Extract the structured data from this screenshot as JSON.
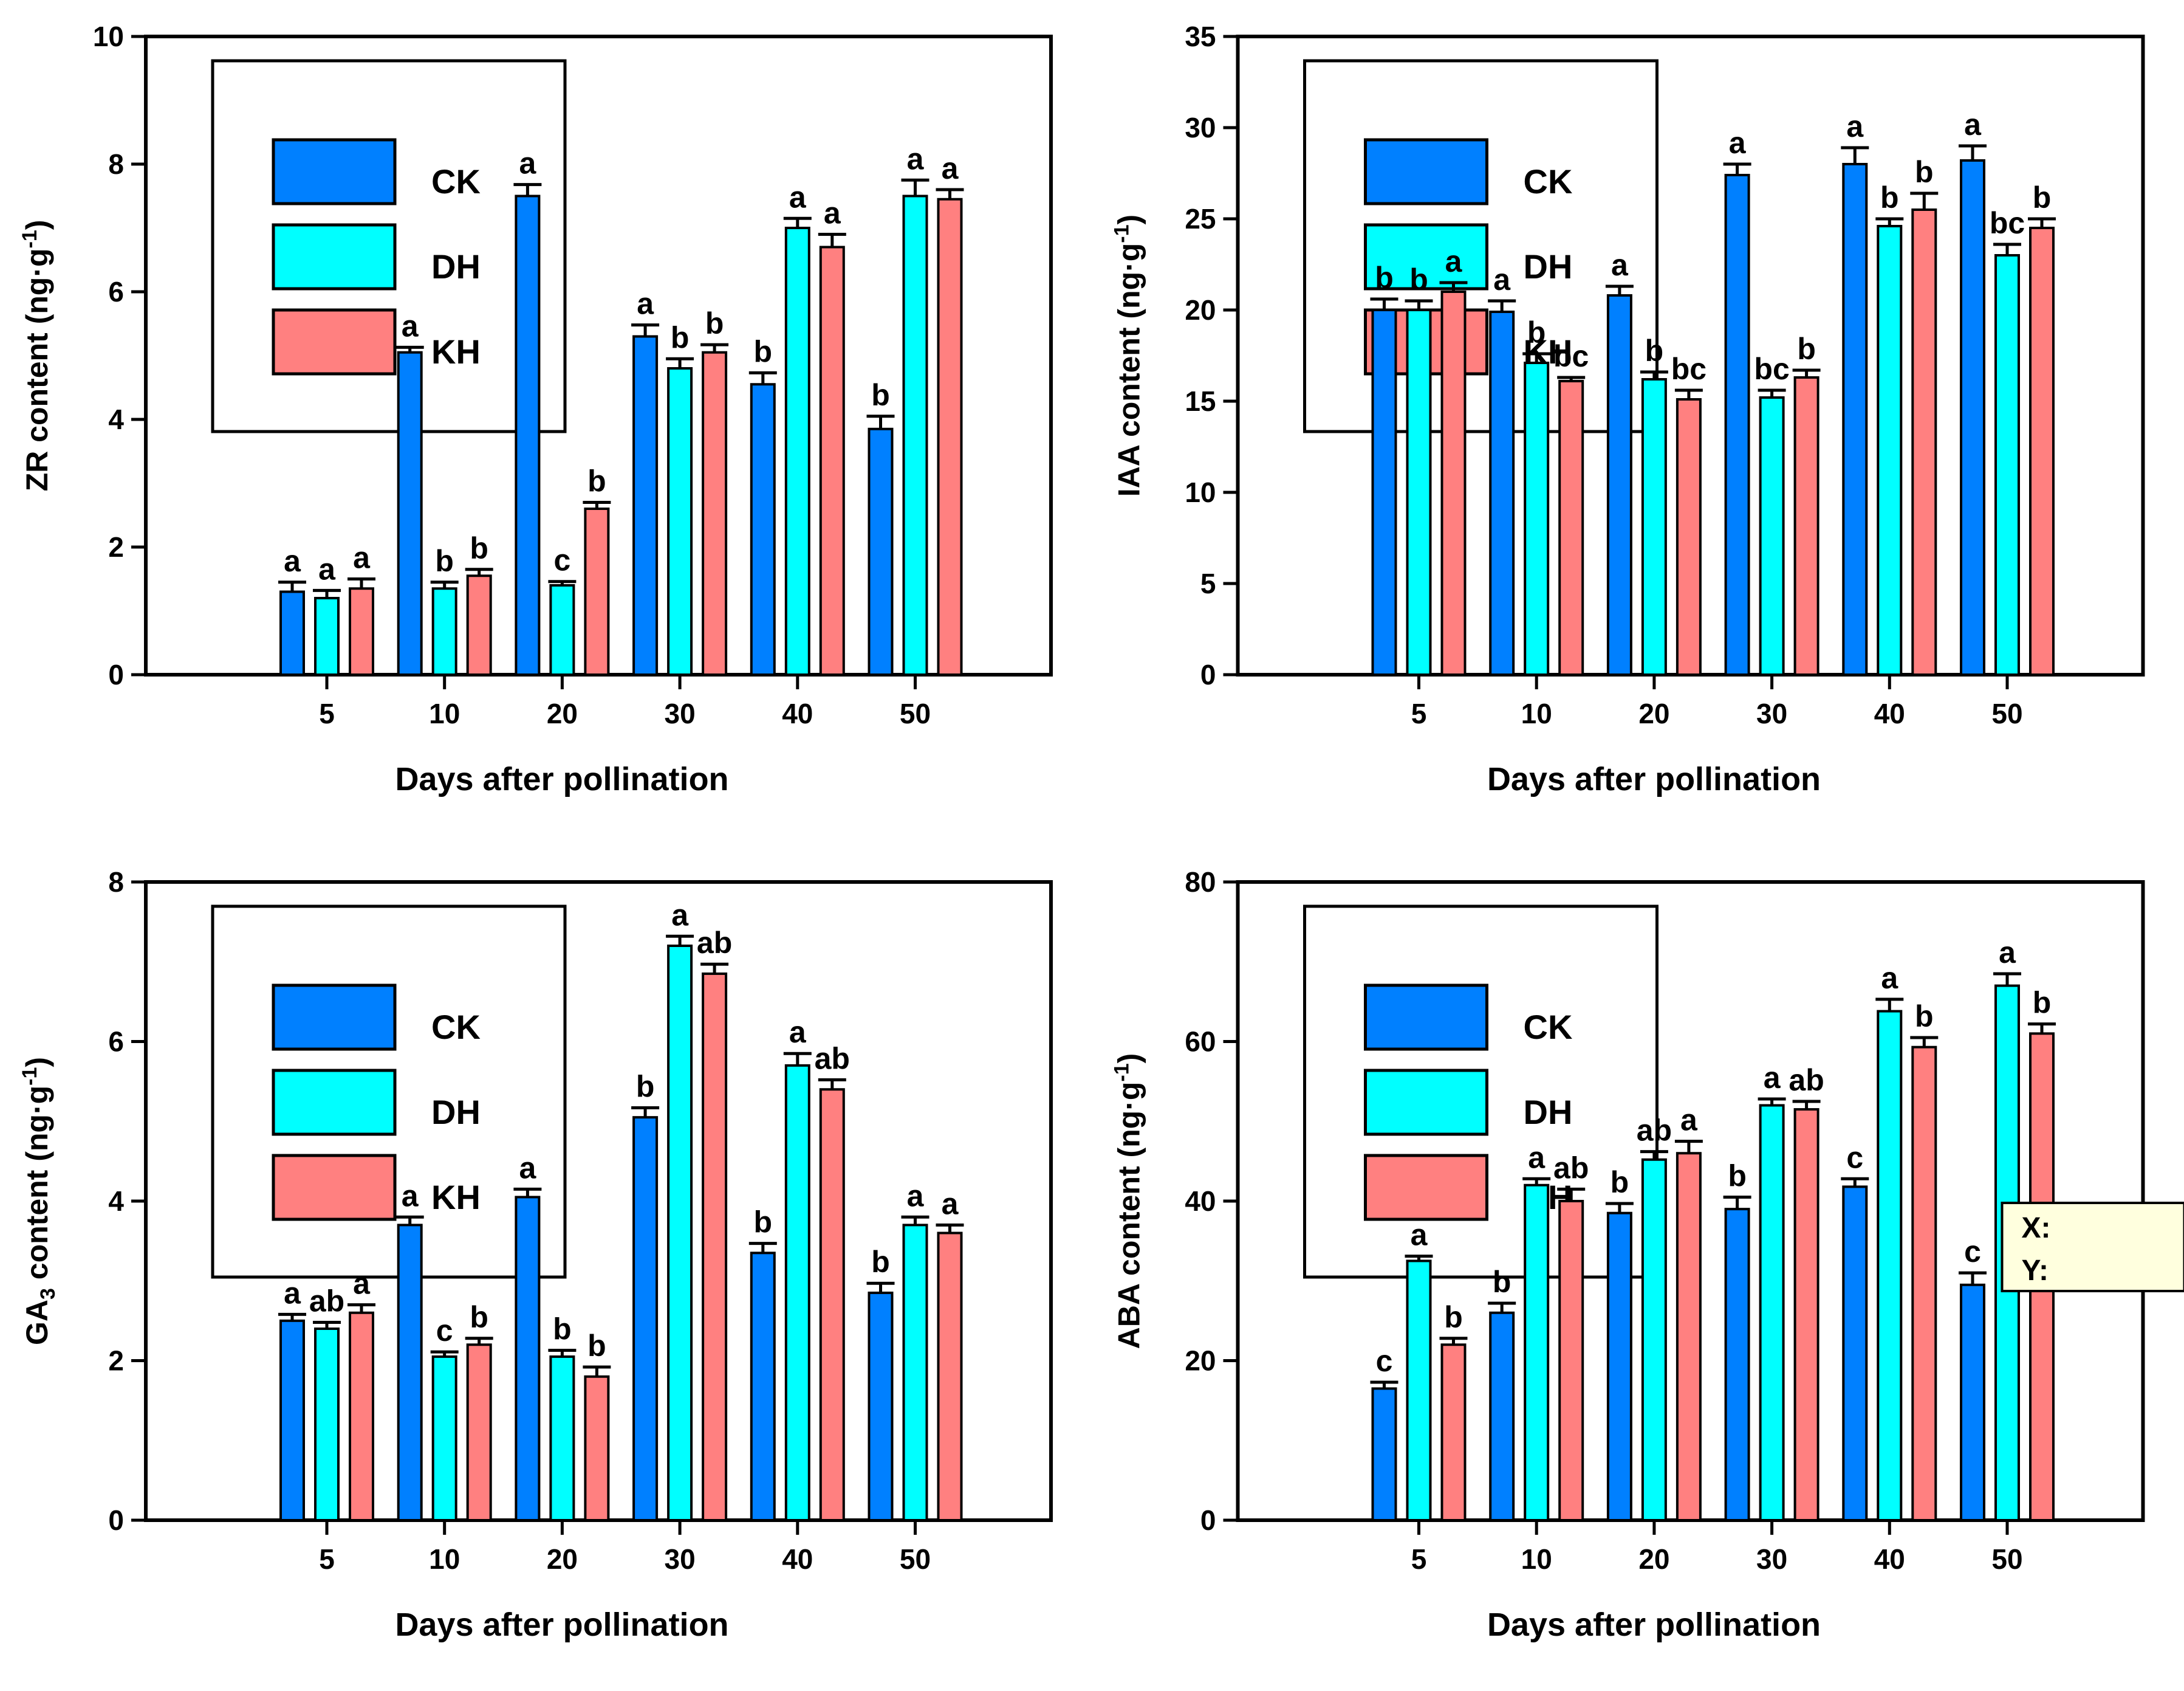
{
  "page": {
    "background": "#ffffff"
  },
  "colors": {
    "CK": "#0080FF",
    "DH": "#00FFFF",
    "KH": "#FF8080",
    "bar_stroke": "#000000",
    "axis": "#000000",
    "text": "#000000",
    "tooltip_bg": "#FFFFDE",
    "tooltip_border": "#000000",
    "tooltip_text": "#191970"
  },
  "legend": {
    "labels": [
      "CK",
      "DH",
      "KH"
    ],
    "position": "top-left"
  },
  "xlabel": "Days after pollination",
  "categories": [
    "5",
    "10",
    "20",
    "30",
    "40",
    "50"
  ],
  "tooltip": {
    "x_label": "X:",
    "y_label": "Y:"
  },
  "chart_data": [
    {
      "type": "bar",
      "id": "zr",
      "title": "",
      "ylabel_segments": [
        {
          "text": "ZR content (ng·g",
          "style": "normal"
        },
        {
          "text": "-1",
          "style": "sup"
        },
        {
          "text": ")",
          "style": "normal"
        }
      ],
      "xlabel": "Days after pollination",
      "categories": [
        "5",
        "10",
        "20",
        "30",
        "40",
        "50"
      ],
      "ylim": [
        0,
        10
      ],
      "ytick_step": 2,
      "grid": false,
      "legend_position": "top-left",
      "series": [
        {
          "name": "CK",
          "values": [
            1.3,
            5.05,
            7.5,
            5.3,
            4.55,
            3.85
          ],
          "errors": [
            0.15,
            0.08,
            0.18,
            0.18,
            0.18,
            0.2
          ],
          "letters": [
            "a",
            "a",
            "a",
            "a",
            "b",
            "b"
          ]
        },
        {
          "name": "DH",
          "values": [
            1.2,
            1.35,
            1.4,
            4.8,
            7.0,
            7.5
          ],
          "errors": [
            0.12,
            0.1,
            0.06,
            0.15,
            0.15,
            0.25
          ],
          "letters": [
            "a",
            "b",
            "c",
            "b",
            "a",
            "a"
          ]
        },
        {
          "name": "KH",
          "values": [
            1.35,
            1.55,
            2.6,
            5.05,
            6.7,
            7.45
          ],
          "errors": [
            0.15,
            0.1,
            0.1,
            0.12,
            0.2,
            0.15
          ],
          "letters": [
            "a",
            "b",
            "b",
            "b",
            "a",
            "a"
          ]
        }
      ],
      "has_tooltip": false
    },
    {
      "type": "bar",
      "id": "iaa",
      "title": "",
      "ylabel_segments": [
        {
          "text": "IAA content (ng·g",
          "style": "normal"
        },
        {
          "text": "-1",
          "style": "sup"
        },
        {
          "text": ")",
          "style": "normal"
        }
      ],
      "xlabel": "Days after pollination",
      "categories": [
        "5",
        "10",
        "20",
        "30",
        "40",
        "50"
      ],
      "ylim": [
        0,
        35
      ],
      "ytick_step": 5,
      "grid": false,
      "legend_position": "top-left",
      "series": [
        {
          "name": "CK",
          "values": [
            20.0,
            19.9,
            20.8,
            27.4,
            28.0,
            28.2
          ],
          "errors": [
            0.6,
            0.6,
            0.5,
            0.6,
            0.9,
            0.8
          ],
          "letters": [
            "b",
            "a",
            "a",
            "a",
            "a",
            "a"
          ]
        },
        {
          "name": "DH",
          "values": [
            20.0,
            17.1,
            16.2,
            15.2,
            24.6,
            23.0
          ],
          "errors": [
            0.5,
            0.5,
            0.4,
            0.4,
            0.4,
            0.6
          ],
          "letters": [
            "b",
            "b",
            "b",
            "bc",
            "b",
            "bc"
          ]
        },
        {
          "name": "KH",
          "values": [
            21.0,
            16.1,
            15.1,
            16.3,
            25.5,
            24.5
          ],
          "errors": [
            0.5,
            0.2,
            0.5,
            0.4,
            0.9,
            0.5
          ],
          "letters": [
            "a",
            "bc",
            "bc",
            "b",
            "b",
            "b"
          ]
        }
      ],
      "has_tooltip": false
    },
    {
      "type": "bar",
      "id": "ga3",
      "title": "",
      "ylabel_segments": [
        {
          "text": "GA",
          "style": "normal"
        },
        {
          "text": "3",
          "style": "sub"
        },
        {
          "text": " content (ng·g",
          "style": "normal"
        },
        {
          "text": "-1",
          "style": "sup"
        },
        {
          "text": ")",
          "style": "normal"
        }
      ],
      "xlabel": "Days after pollination",
      "categories": [
        "5",
        "10",
        "20",
        "30",
        "40",
        "50"
      ],
      "ylim": [
        0,
        8
      ],
      "ytick_step": 2,
      "grid": false,
      "legend_position": "top-left",
      "series": [
        {
          "name": "CK",
          "values": [
            2.5,
            3.7,
            4.05,
            5.05,
            3.35,
            2.85
          ],
          "errors": [
            0.08,
            0.1,
            0.1,
            0.12,
            0.12,
            0.12
          ],
          "letters": [
            "a",
            "a",
            "a",
            "b",
            "b",
            "b"
          ]
        },
        {
          "name": "DH",
          "values": [
            2.4,
            2.05,
            2.05,
            7.2,
            5.7,
            3.7
          ],
          "errors": [
            0.08,
            0.06,
            0.08,
            0.12,
            0.15,
            0.1
          ],
          "letters": [
            "ab",
            "c",
            "b",
            "a",
            "a",
            "a"
          ]
        },
        {
          "name": "KH",
          "values": [
            2.6,
            2.2,
            1.8,
            6.85,
            5.4,
            3.6
          ],
          "errors": [
            0.1,
            0.08,
            0.12,
            0.12,
            0.12,
            0.1
          ],
          "letters": [
            "a",
            "b",
            "b",
            "ab",
            "ab",
            "a"
          ]
        }
      ],
      "has_tooltip": false
    },
    {
      "type": "bar",
      "id": "aba",
      "title": "",
      "ylabel_segments": [
        {
          "text": "ABA content (ng·g",
          "style": "normal"
        },
        {
          "text": "-1",
          "style": "sup"
        },
        {
          "text": ")",
          "style": "normal"
        }
      ],
      "xlabel": "Days after pollination",
      "categories": [
        "5",
        "10",
        "20",
        "30",
        "40",
        "50"
      ],
      "ylim": [
        0,
        80
      ],
      "ytick_step": 20,
      "grid": false,
      "legend_position": "top-left",
      "series": [
        {
          "name": "CK",
          "values": [
            16.5,
            26.0,
            38.5,
            39.0,
            41.8,
            29.5
          ],
          "errors": [
            0.8,
            1.2,
            1.2,
            1.5,
            1.0,
            1.5
          ],
          "letters": [
            "c",
            "b",
            "b",
            "b",
            "c",
            "c"
          ]
        },
        {
          "name": "DH",
          "values": [
            32.5,
            42.0,
            45.2,
            52.0,
            63.8,
            67.0
          ],
          "errors": [
            0.6,
            0.8,
            1.0,
            0.8,
            1.5,
            1.5
          ],
          "letters": [
            "a",
            "a",
            "ab",
            "a",
            "a",
            "a"
          ]
        },
        {
          "name": "KH",
          "values": [
            22.0,
            40.0,
            46.0,
            51.5,
            59.3,
            61.0
          ],
          "errors": [
            0.8,
            1.5,
            1.5,
            1.0,
            1.2,
            1.2
          ],
          "letters": [
            "b",
            "ab",
            "a",
            "ab",
            "b",
            "b"
          ]
        }
      ],
      "has_tooltip": true
    }
  ]
}
